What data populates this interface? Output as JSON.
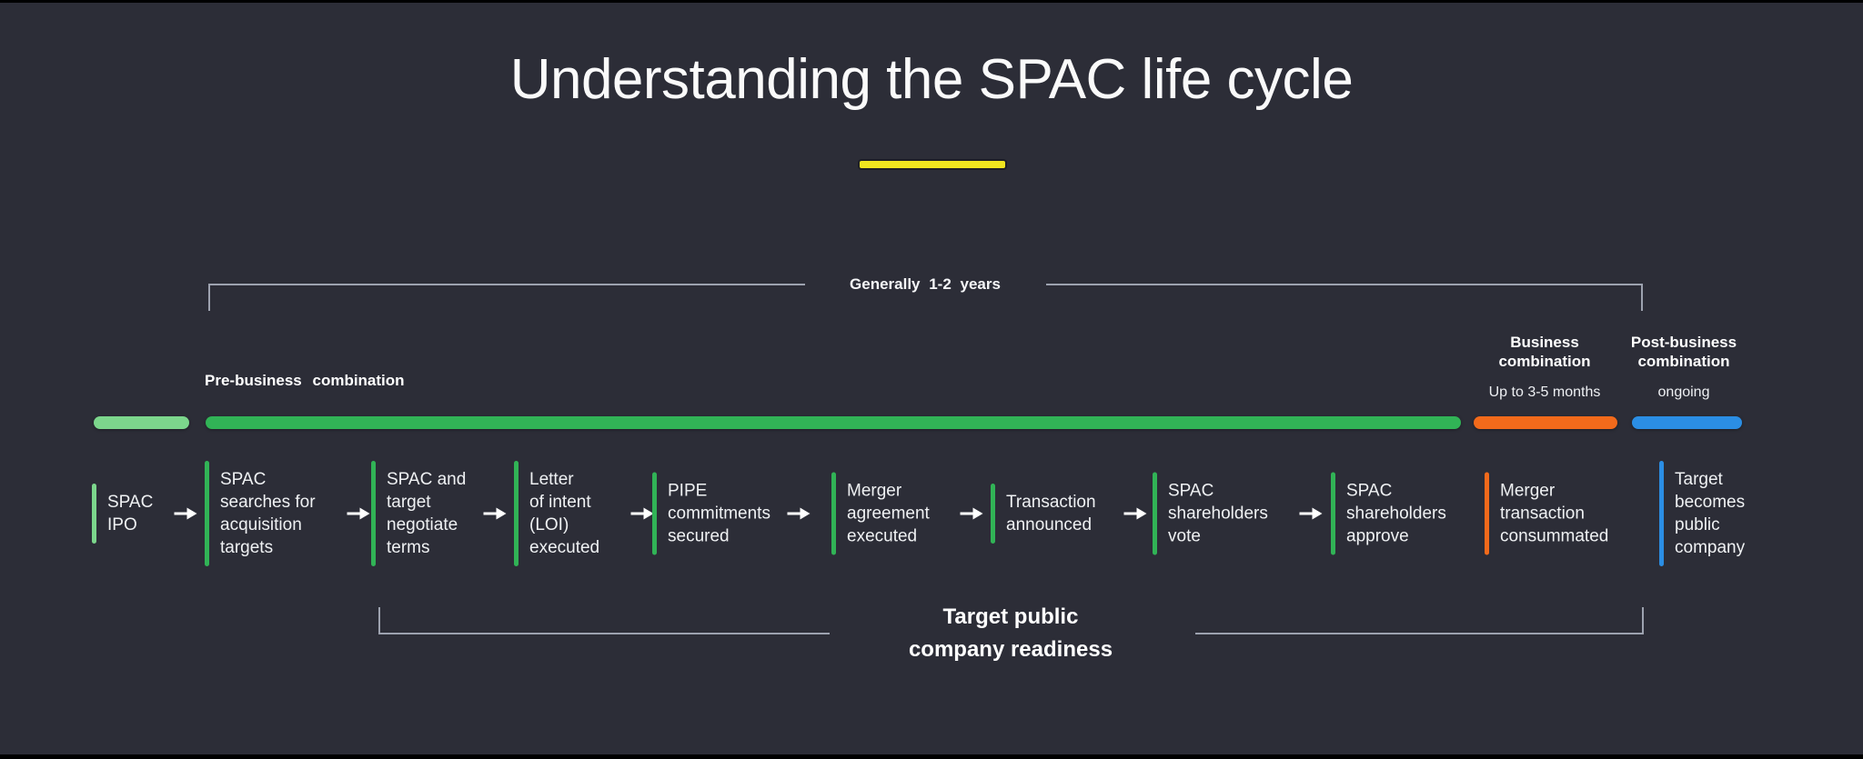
{
  "title": "Understanding the SPAC life cycle",
  "timeline": {
    "duration_label": "Generally 1-2 years",
    "readiness_label_lines": [
      "Target public",
      "company readiness"
    ],
    "phases": [
      {
        "id": "pre-business-combination",
        "label": "Pre-business combination",
        "sublabel": "",
        "bar_color": "#31b356",
        "intro_bar_color": "#7cd68c"
      },
      {
        "id": "business-combination",
        "label": "Business combination",
        "sublabel": "Up to 3-5 months",
        "bar_color": "#f26a1b"
      },
      {
        "id": "post-business-combination",
        "label": "Post-business combination",
        "sublabel": "ongoing",
        "bar_color": "#2b8ee4"
      }
    ]
  },
  "stages": [
    {
      "id": "spac-ipo",
      "lines": [
        "SPAC",
        "IPO"
      ],
      "tick_color": "#7cd68c",
      "arrow_after": true
    },
    {
      "id": "spac-searches-for-targets",
      "lines": [
        "SPAC",
        "searches for",
        "acquisition",
        "targets"
      ],
      "tick_color": "#31b356",
      "arrow_after": true
    },
    {
      "id": "negotiate-terms",
      "lines": [
        "SPAC and",
        "target",
        "negotiate",
        "terms"
      ],
      "tick_color": "#31b356",
      "arrow_after": true
    },
    {
      "id": "loi-executed",
      "lines": [
        "Letter",
        "of intent",
        "(LOI)",
        "executed"
      ],
      "tick_color": "#31b356",
      "arrow_after": true
    },
    {
      "id": "pipe-commitments-secured",
      "lines": [
        "PIPE",
        "commitments",
        "secured"
      ],
      "tick_color": "#31b356",
      "arrow_after": true
    },
    {
      "id": "merger-agreement-executed",
      "lines": [
        "Merger",
        "agreement",
        "executed"
      ],
      "tick_color": "#31b356",
      "arrow_after": true
    },
    {
      "id": "transaction-announced",
      "lines": [
        "Transaction",
        "announced"
      ],
      "tick_color": "#31b356",
      "arrow_after": true
    },
    {
      "id": "spac-shareholders-vote",
      "lines": [
        "SPAC",
        "shareholders",
        "vote"
      ],
      "tick_color": "#31b356",
      "arrow_after": true
    },
    {
      "id": "spac-shareholders-approve",
      "lines": [
        "SPAC",
        "shareholders",
        "approve"
      ],
      "tick_color": "#31b356",
      "arrow_after": false
    },
    {
      "id": "merger-transaction-consummated",
      "lines": [
        "Merger",
        "transaction",
        "consummated"
      ],
      "tick_color": "#f26a1b",
      "arrow_after": false
    },
    {
      "id": "target-becomes-public-company",
      "lines": [
        "Target",
        "becomes",
        "public",
        "company"
      ],
      "tick_color": "#2b8ee4",
      "arrow_after": false
    }
  ],
  "colors": {
    "background": "#2c2d37",
    "title_underline": "#f0e51f",
    "bracket_line": "#9da2af",
    "arrow": "#ffffff"
  }
}
